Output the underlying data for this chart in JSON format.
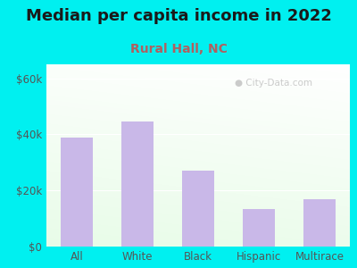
{
  "title": "Median per capita income in 2022",
  "subtitle": "Rural Hall, NC",
  "categories": [
    "All",
    "White",
    "Black",
    "Hispanic",
    "Multirace"
  ],
  "values": [
    39000,
    44500,
    27000,
    13500,
    17000
  ],
  "bar_color": "#c9b8e8",
  "title_fontsize": 13,
  "subtitle_fontsize": 10,
  "title_color": "#1a1a1a",
  "subtitle_color": "#b06060",
  "tick_color": "#555555",
  "background_outer": "#00f0f0",
  "ylim": [
    0,
    65000
  ],
  "yticks": [
    0,
    20000,
    40000,
    60000
  ],
  "ytick_labels": [
    "$0",
    "$20k",
    "$40k",
    "$60k"
  ],
  "watermark": "City-Data.com"
}
